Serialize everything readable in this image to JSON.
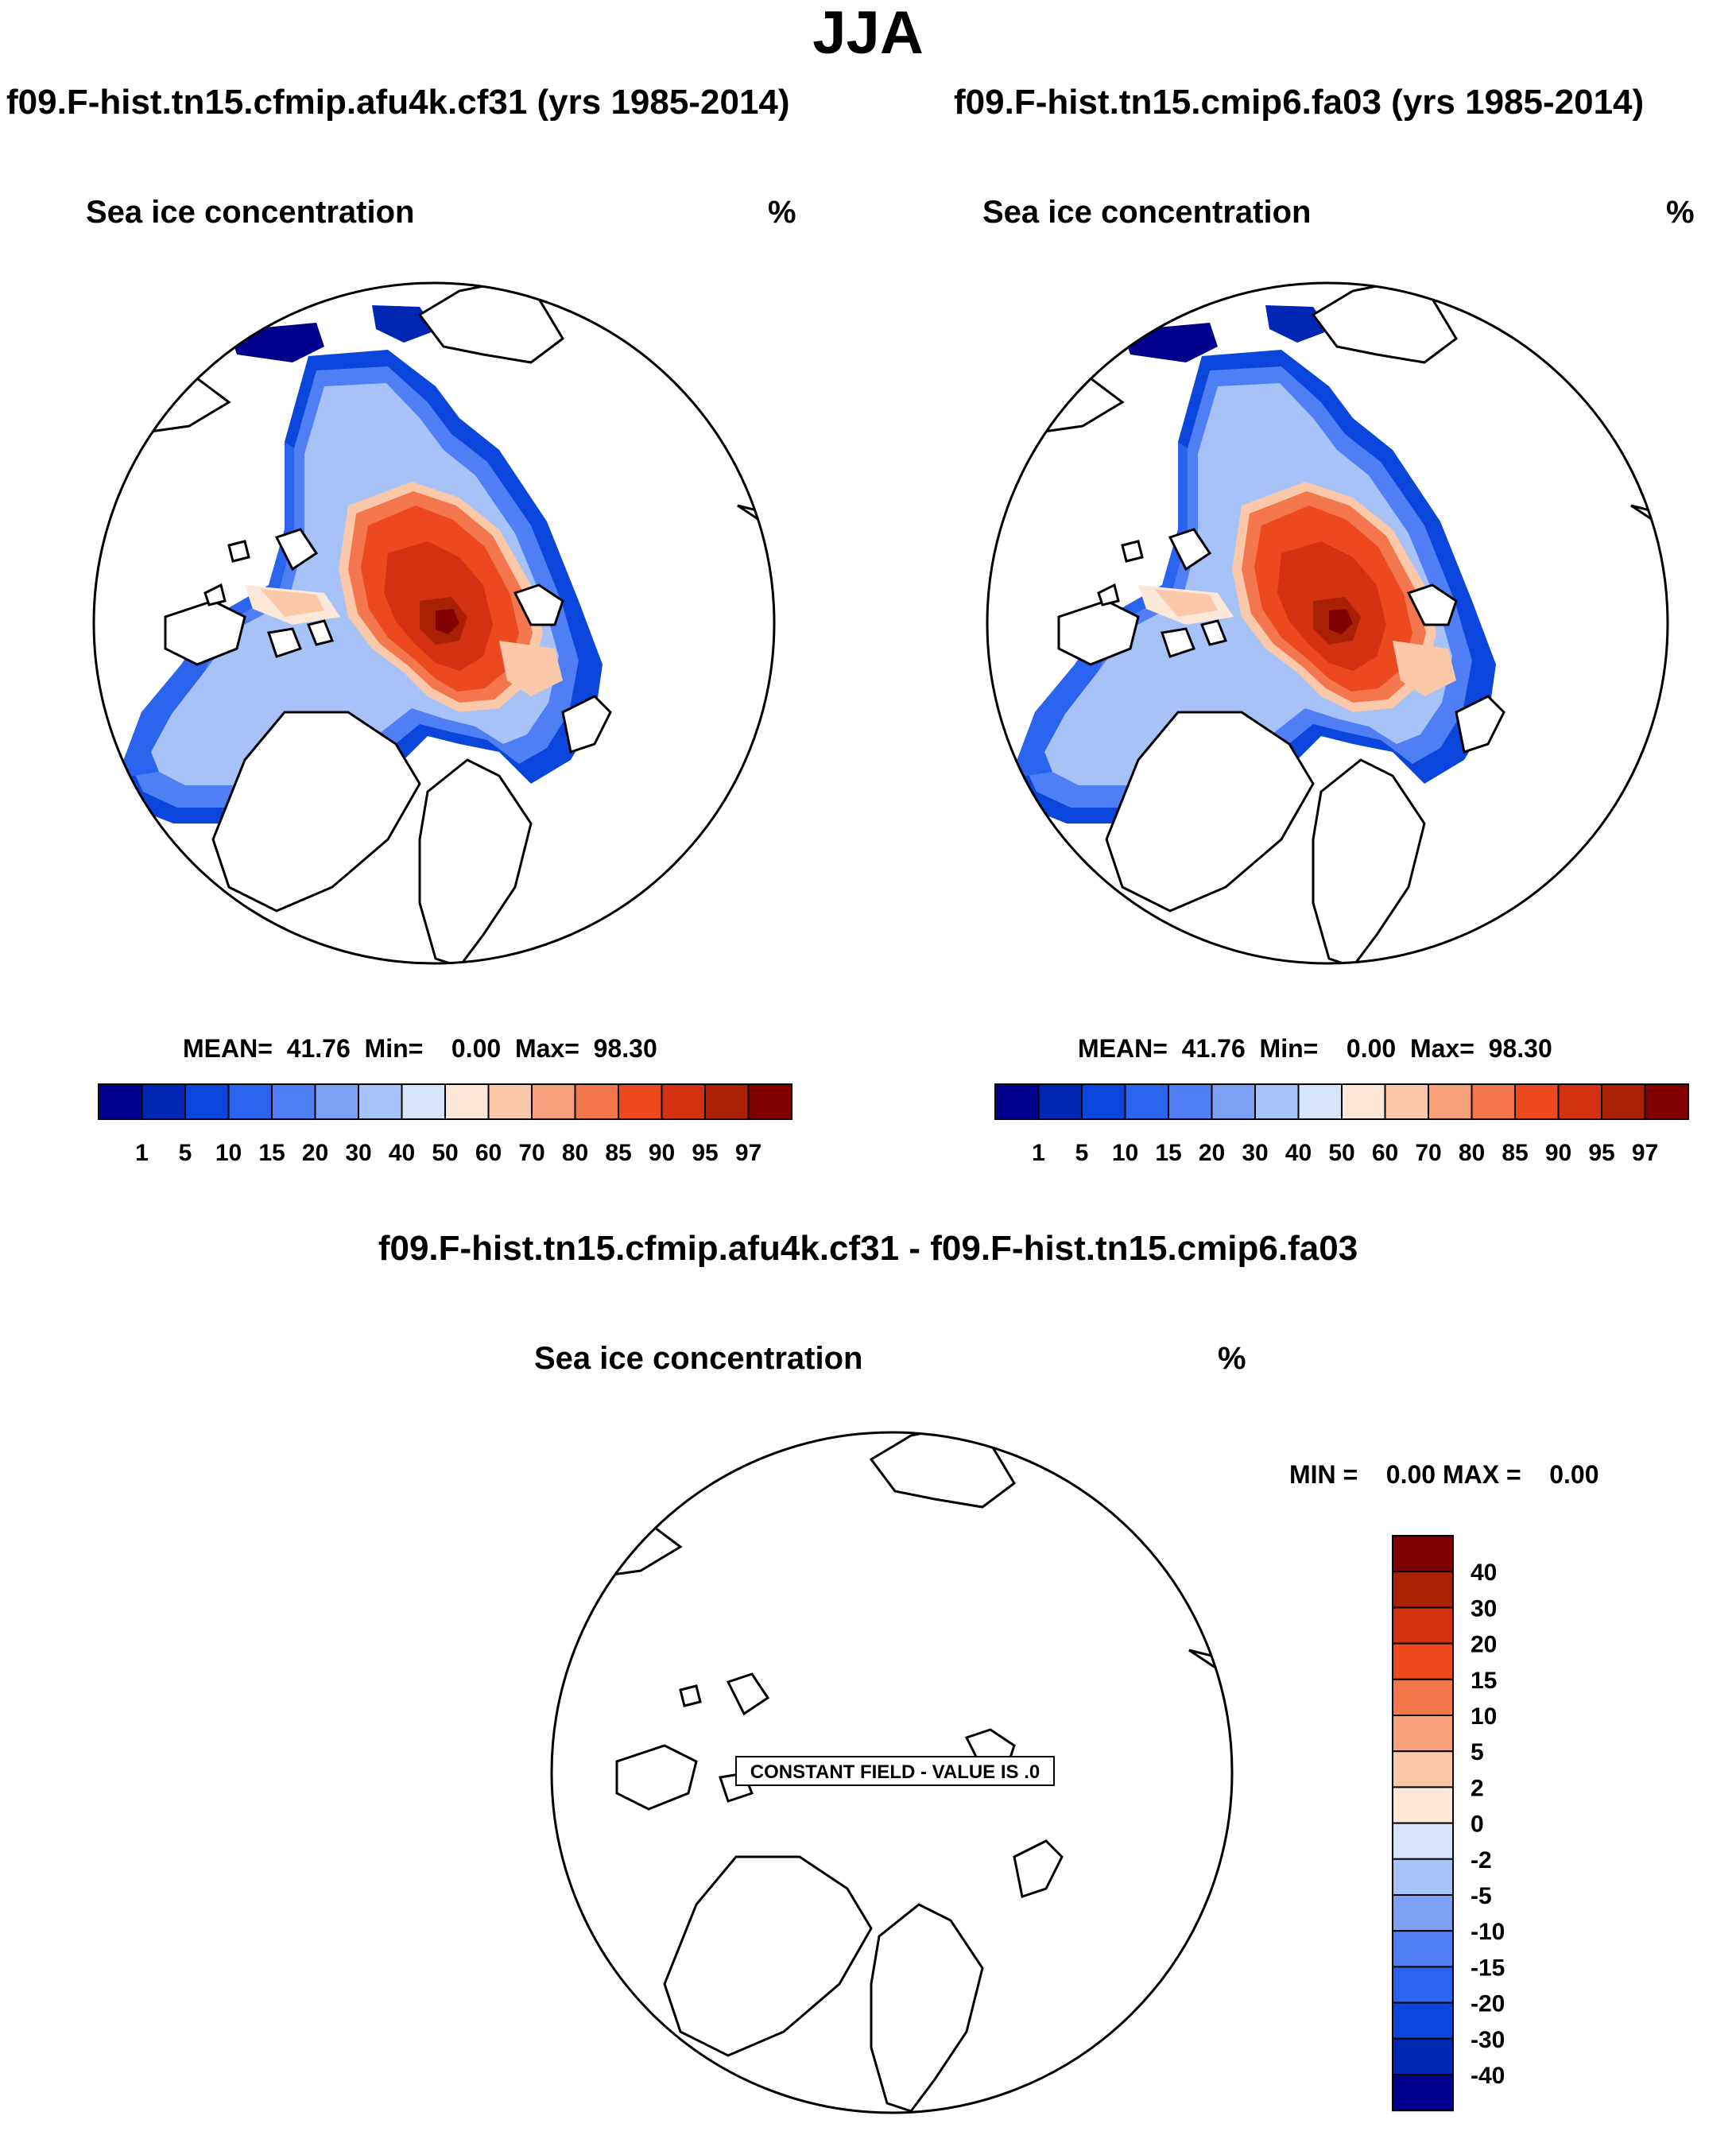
{
  "page": {
    "title": "JJA"
  },
  "panel_left": {
    "run_title": "f09.F-hist.tn15.cfmip.afu4k.cf31 (yrs 1985-2014)",
    "var_title": "Sea ice concentration",
    "units": "%",
    "stats": "MEAN=  41.76  Min=    0.00  Max=  98.30"
  },
  "panel_right": {
    "run_title": "f09.F-hist.tn15.cmip6.fa03 (yrs 1985-2014)",
    "var_title": "Sea ice concentration",
    "units": "%",
    "stats": "MEAN=  41.76  Min=    0.00  Max=  98.30"
  },
  "panel_diff": {
    "run_title": "f09.F-hist.tn15.cfmip.afu4k.cf31 - f09.F-hist.tn15.cmip6.fa03",
    "var_title": "Sea ice concentration",
    "units": "%",
    "stats": "MIN =    0.00 MAX =    0.00",
    "constant_label": "CONSTANT FIELD - VALUE IS .0"
  },
  "colorbar_main": {
    "labels": [
      "1",
      "5",
      "10",
      "15",
      "20",
      "30",
      "40",
      "50",
      "60",
      "70",
      "80",
      "85",
      "90",
      "95",
      "97"
    ],
    "colors": [
      "#00008c",
      "#0026b4",
      "#0a46dc",
      "#2a64ee",
      "#507ef4",
      "#7ca0f4",
      "#a6c2f6",
      "#d6e6fa",
      "#fce8d8",
      "#fbc8aa",
      "#f8a07a",
      "#f4764c",
      "#ec4a1e",
      "#d23210",
      "#aa2004",
      "#820000"
    ]
  },
  "colorbar_diff": {
    "labels": [
      "40",
      "30",
      "20",
      "15",
      "10",
      "5",
      "2",
      "0",
      "-2",
      "-5",
      "-10",
      "-15",
      "-20",
      "-30",
      "-40"
    ],
    "colors": [
      "#820000",
      "#aa2004",
      "#d23210",
      "#ec4a1e",
      "#f4764c",
      "#f8a07a",
      "#fbc8aa",
      "#fce8d8",
      "#d6e6fa",
      "#a6c2f6",
      "#7ca0f4",
      "#507ef4",
      "#2a64ee",
      "#0a46dc",
      "#0026b4",
      "#00008c"
    ]
  }
}
